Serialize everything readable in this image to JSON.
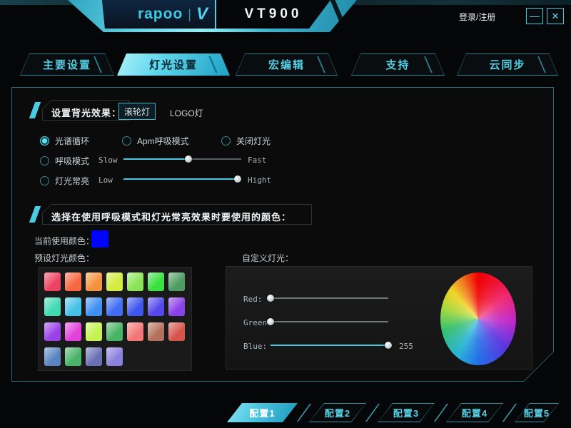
{
  "window": {
    "brand": "rapoo",
    "brand_divider": "|",
    "brand_v": "V",
    "model": "VT900",
    "login_label": "登录/注册",
    "minimize_glyph": "—",
    "close_glyph": "✕"
  },
  "nav": {
    "tabs": [
      {
        "label": "主要设置",
        "active": false
      },
      {
        "label": "灯光设置",
        "active": true
      },
      {
        "label": "宏编辑",
        "active": false
      },
      {
        "label": "支持",
        "active": false
      },
      {
        "label": "云同步",
        "active": false
      }
    ]
  },
  "backlight": {
    "section_title": "设置背光效果：",
    "wheel_button_label": "滚轮灯",
    "logo_button_label": "LOGO灯",
    "modes": [
      {
        "label": "光谱循环",
        "selected": true
      },
      {
        "label": "Apm呼吸模式",
        "selected": false
      },
      {
        "label": "关闭灯光",
        "selected": false
      },
      {
        "label": "呼吸模式",
        "selected": false
      },
      {
        "label": "灯光常亮",
        "selected": false
      }
    ],
    "breath_slider": {
      "min_label": "Slow",
      "max_label": "Fast",
      "value_pct": 55
    },
    "bright_slider": {
      "min_label": "Low",
      "max_label": "Hight",
      "value_pct": 97
    }
  },
  "colors": {
    "section_title": "选择在使用呼吸模式和灯光常亮效果时要使用的颜色：",
    "current_label": "当前使用颜色：",
    "current_color": "#0004fa",
    "preset_label": "预设灯光颜色：",
    "custom_label": "自定义灯光：",
    "preset_colors": [
      "#ee4263",
      "#f56841",
      "#f4923e",
      "#d4ec3f",
      "#8be457",
      "#38e13e",
      "#4d9c62",
      "#40dab3",
      "#46c1e8",
      "#3f90f2",
      "#3f6df4",
      "#3d57ee",
      "#5448ec",
      "#8a41e8",
      "#9b41e9",
      "#e142da",
      "#c4f351",
      "#46b465",
      "#f37776",
      "#b4705a",
      "#d7544b",
      "#5a84c0",
      "#48b369",
      "#6b70b5",
      "#8a80df"
    ],
    "rgb_sliders": [
      {
        "label": "Red:",
        "value_pct": 0,
        "value_text": ""
      },
      {
        "label": "Green:",
        "value_pct": 0,
        "value_text": ""
      },
      {
        "label": "Blue:",
        "value_pct": 100,
        "value_text": "255"
      }
    ],
    "accent_color": "#4cc8e0"
  },
  "profiles": [
    {
      "label": "配置1",
      "active": true
    },
    {
      "label": "配置2",
      "active": false
    },
    {
      "label": "配置3",
      "active": false
    },
    {
      "label": "配置4",
      "active": false
    },
    {
      "label": "配置5",
      "active": false
    }
  ]
}
